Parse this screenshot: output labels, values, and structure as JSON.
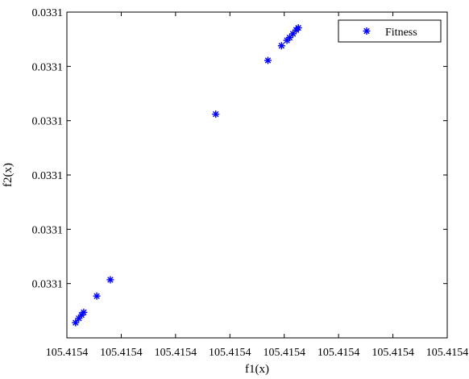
{
  "chart_data": {
    "type": "scatter",
    "xlabel": "f1(x)",
    "ylabel": "f2(x)",
    "x_ticks": [
      {
        "value": 0,
        "label": "105.4154"
      },
      {
        "value": 1,
        "label": "105.4154"
      },
      {
        "value": 2,
        "label": "105.4154"
      },
      {
        "value": 3,
        "label": "105.4154"
      },
      {
        "value": 4,
        "label": "105.4154"
      },
      {
        "value": 5,
        "label": "105.4154"
      },
      {
        "value": 6,
        "label": "105.4154"
      },
      {
        "value": 7,
        "label": "105.4154"
      }
    ],
    "y_ticks": [
      {
        "value": 1,
        "label": "0.0331"
      },
      {
        "value": 2,
        "label": "0.0331"
      },
      {
        "value": 3,
        "label": "0.0331"
      },
      {
        "value": 4,
        "label": "0.0331"
      },
      {
        "value": 5,
        "label": "0.0331"
      },
      {
        "value": 6,
        "label": "0.0331"
      }
    ],
    "xlim": [
      0,
      7
    ],
    "ylim": [
      0,
      6
    ],
    "grid": false,
    "legend": {
      "position": "top-right"
    },
    "series": [
      {
        "name": "Fitness",
        "marker": "*",
        "color": "#0000ff",
        "points": [
          {
            "x": 0.16,
            "y": 0.28
          },
          {
            "x": 0.22,
            "y": 0.36
          },
          {
            "x": 0.27,
            "y": 0.42
          },
          {
            "x": 0.31,
            "y": 0.47
          },
          {
            "x": 0.55,
            "y": 0.77
          },
          {
            "x": 0.8,
            "y": 1.07
          },
          {
            "x": 2.74,
            "y": 4.12
          },
          {
            "x": 3.7,
            "y": 5.11
          },
          {
            "x": 3.95,
            "y": 5.38
          },
          {
            "x": 4.05,
            "y": 5.48
          },
          {
            "x": 4.1,
            "y": 5.53
          },
          {
            "x": 4.16,
            "y": 5.6
          },
          {
            "x": 4.22,
            "y": 5.67
          },
          {
            "x": 4.26,
            "y": 5.71
          }
        ]
      }
    ]
  }
}
